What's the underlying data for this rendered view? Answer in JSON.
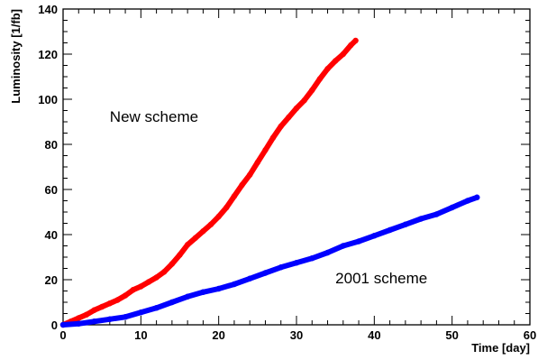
{
  "chart_data": {
    "type": "line",
    "xlabel": "Time [day]",
    "ylabel": "Luminosity [1/fb]",
    "xlim": [
      0,
      60
    ],
    "ylim": [
      0,
      140
    ],
    "x_ticks": [
      "0",
      "10",
      "20",
      "30",
      "40",
      "50",
      "60"
    ],
    "y_ticks": [
      "0",
      "20",
      "40",
      "60",
      "80",
      "100",
      "120",
      "140"
    ],
    "grid": false,
    "series": [
      {
        "color": "#ff0000",
        "x": [
          0,
          1,
          2,
          3,
          4,
          5,
          6,
          7,
          8,
          9,
          10,
          11,
          12,
          13,
          14,
          15,
          16,
          17,
          18,
          19,
          20,
          21,
          22,
          23,
          24,
          25,
          26,
          27,
          28,
          29,
          30,
          31,
          32,
          33,
          34,
          35,
          36,
          37,
          37.6
        ],
        "y": [
          0,
          1.5,
          3,
          4.5,
          6.5,
          8,
          9.5,
          11,
          13,
          15.5,
          17,
          19,
          21,
          23.5,
          27,
          31,
          35.5,
          38.5,
          41.5,
          44.5,
          48,
          52,
          57,
          62,
          66.5,
          72,
          77.5,
          83,
          88,
          92,
          96,
          99.5,
          104,
          109,
          113.5,
          117,
          120,
          124,
          126
        ]
      },
      {
        "color": "#0000ff",
        "x": [
          0,
          2,
          4,
          6,
          8,
          10,
          12,
          14,
          16,
          18,
          20,
          22,
          24,
          26,
          28,
          30,
          32,
          34,
          36,
          38,
          40,
          42,
          44,
          46,
          48,
          50,
          52,
          53.2
        ],
        "y": [
          0,
          0.5,
          1.5,
          2.5,
          3.5,
          5.5,
          7.5,
          10,
          12.5,
          14.5,
          16,
          18,
          20.5,
          23,
          25.5,
          27.5,
          29.5,
          32,
          35,
          37,
          39.5,
          42,
          44.5,
          47,
          49,
          52,
          55,
          56.5
        ]
      }
    ],
    "annotations": [
      {
        "text": "New scheme",
        "x": 6,
        "y": 90
      },
      {
        "text": "2001 scheme",
        "x": 35,
        "y": 18.5
      }
    ]
  }
}
